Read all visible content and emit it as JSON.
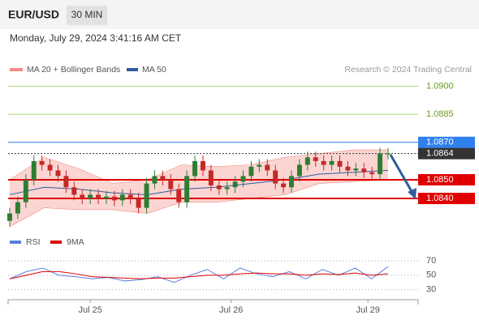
{
  "header": {
    "symbol": "EUR/USD",
    "interval": "30 MIN",
    "timestamp": "Monday, July 29, 2024 3:41:16 AM CET"
  },
  "chart_data": [
    {
      "type": "candlestick",
      "credit": "Research © 2024 Trading Central",
      "up_color": "#2e7d32",
      "down_color": "#c62828",
      "open": [
        1.0828,
        1.0832,
        1.0838,
        1.085,
        1.086,
        1.0858,
        1.0855,
        1.0852,
        1.0846,
        1.0842,
        1.084,
        1.0842,
        1.084,
        1.0841,
        1.0839,
        1.0842,
        1.084,
        1.0835,
        1.0848,
        1.0852,
        1.085,
        1.0845,
        1.0838,
        1.0852,
        1.086,
        1.0855,
        1.0847,
        1.0845,
        1.0846,
        1.0849,
        1.0852,
        1.0857,
        1.0858,
        1.0855,
        1.0848,
        1.0846,
        1.0852,
        1.0858,
        1.0862,
        1.086,
        1.0858,
        1.086,
        1.0857,
        1.0855,
        1.0856,
        1.0854,
        1.0853,
        1.0864
      ],
      "high": [
        1.0835,
        1.0841,
        1.0853,
        1.0863,
        1.0863,
        1.0861,
        1.0858,
        1.0855,
        1.0849,
        1.0845,
        1.0845,
        1.0845,
        1.0844,
        1.0844,
        1.0845,
        1.0845,
        1.0843,
        1.0851,
        1.0855,
        1.0855,
        1.0853,
        1.0848,
        1.0855,
        1.0863,
        1.0863,
        1.0858,
        1.085,
        1.0849,
        1.0852,
        1.0855,
        1.086,
        1.0861,
        1.0861,
        1.0858,
        1.0851,
        1.0855,
        1.0861,
        1.0865,
        1.0865,
        1.0863,
        1.0863,
        1.0863,
        1.086,
        1.0859,
        1.0859,
        1.0857,
        1.0867,
        1.0867
      ],
      "low": [
        1.0825,
        1.0829,
        1.0835,
        1.0847,
        1.0855,
        1.0852,
        1.0849,
        1.0843,
        1.0839,
        1.0837,
        1.0837,
        1.0837,
        1.0837,
        1.0836,
        1.0836,
        1.0837,
        1.0832,
        1.0832,
        1.0845,
        1.0847,
        1.0842,
        1.0835,
        1.0835,
        1.0849,
        1.0852,
        1.0844,
        1.0842,
        1.0842,
        1.0843,
        1.0846,
        1.0849,
        1.0854,
        1.0852,
        1.0845,
        1.0843,
        1.0843,
        1.0849,
        1.0855,
        1.0857,
        1.0855,
        1.0855,
        1.0854,
        1.0852,
        1.0852,
        1.0851,
        1.085,
        1.085,
        1.0861
      ],
      "close": [
        1.0832,
        1.0838,
        1.085,
        1.086,
        1.0858,
        1.0855,
        1.0852,
        1.0846,
        1.0842,
        1.084,
        1.0842,
        1.084,
        1.0841,
        1.0839,
        1.0842,
        1.084,
        1.0835,
        1.0848,
        1.0852,
        1.085,
        1.0845,
        1.0838,
        1.0852,
        1.086,
        1.0855,
        1.0847,
        1.0845,
        1.0846,
        1.0849,
        1.0852,
        1.0857,
        1.0858,
        1.0855,
        1.0848,
        1.0846,
        1.0852,
        1.0858,
        1.0862,
        1.086,
        1.0858,
        1.086,
        1.0857,
        1.0855,
        1.0856,
        1.0854,
        1.0853,
        1.0864,
        1.0864
      ],
      "bands": {
        "name": "MA 20 + Bollinger Bands",
        "color": "#f28b82",
        "fill": "#fbd5d2",
        "upper": [
          1.085,
          1.0862,
          1.0856,
          1.0848,
          1.085,
          1.0858,
          1.0857,
          1.0858,
          1.0862,
          1.0864,
          1.0866,
          1.0866
        ],
        "lower": [
          1.0825,
          1.0835,
          1.0834,
          1.0834,
          1.0832,
          1.0838,
          1.0838,
          1.084,
          1.0842,
          1.0848,
          1.0849,
          1.085
        ]
      },
      "ma": {
        "name": "MA 50",
        "color": "#2f5d9e",
        "values": [
          1.0842,
          1.0846,
          1.0845,
          1.0843,
          1.0842,
          1.0845,
          1.0846,
          1.0848,
          1.085,
          1.0853,
          1.0854,
          1.0855
        ]
      },
      "ylim": [
        1.0824,
        1.0905
      ],
      "levels": [
        {
          "value": 1.09,
          "label": "1.0900",
          "color": "#8dc63f",
          "box": false
        },
        {
          "value": 1.0885,
          "label": "1.0885",
          "color": "#8dc63f",
          "box": false
        },
        {
          "value": 1.087,
          "label": "1.0870",
          "color": "#2f80ed",
          "box": true
        },
        {
          "value": 1.0864,
          "label": "1.0864",
          "color": "#333333",
          "box": true,
          "dotted": true
        },
        {
          "value": 1.085,
          "label": "1.0850",
          "color": "#e00000",
          "box": true
        },
        {
          "value": 1.084,
          "label": "1.0840",
          "color": "#e00000",
          "box": true
        }
      ],
      "xticks": [
        {
          "value": 10,
          "label": "Jul 25"
        },
        {
          "value": 27.5,
          "label": "Jul 26"
        },
        {
          "value": 44.5,
          "label": "Jul 29"
        }
      ]
    },
    {
      "type": "line",
      "ylim": [
        16,
        78
      ],
      "yticks": [
        30,
        50,
        70
      ],
      "grid": true,
      "series": [
        {
          "name": "RSI",
          "color": "#5b7fde",
          "values": [
            45,
            55,
            60,
            50,
            48,
            45,
            47,
            42,
            44,
            48,
            40,
            50,
            58,
            45,
            60,
            52,
            48,
            55,
            45,
            58,
            50,
            60,
            45,
            62
          ]
        },
        {
          "name": "9MA",
          "color": "#e00000",
          "values": [
            45,
            50,
            55,
            55,
            52,
            48,
            47,
            46,
            45,
            46,
            46,
            48,
            50,
            50,
            52,
            53,
            52,
            52,
            50,
            52,
            51,
            53,
            50,
            52
          ]
        }
      ]
    }
  ]
}
